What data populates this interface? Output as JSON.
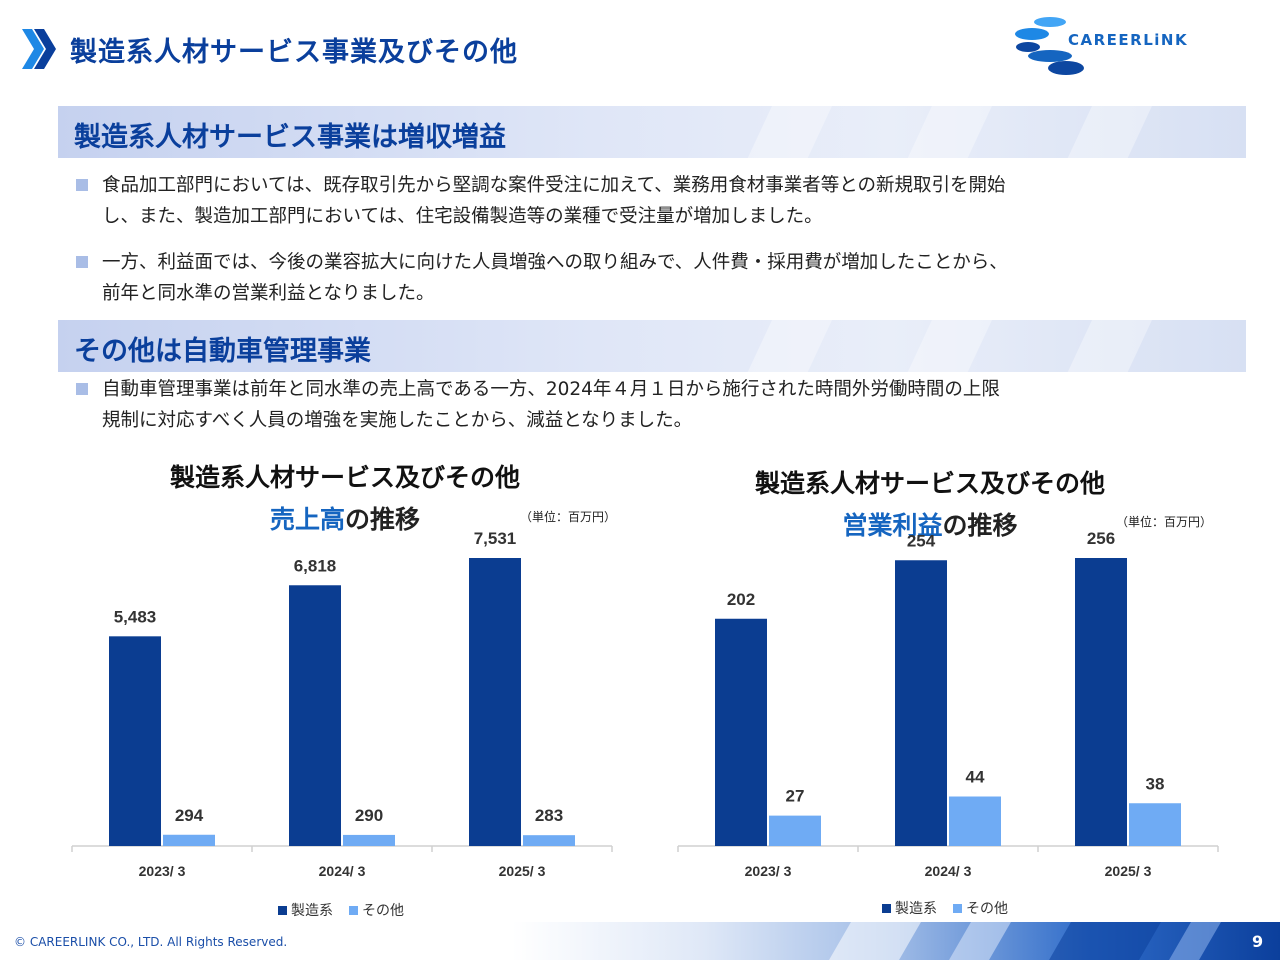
{
  "header": {
    "title": "製造系人材サービス事業及びその他",
    "logo_text": "CAREERLiNK"
  },
  "sections": [
    {
      "title": "製造系人材サービス事業は増収増益",
      "bullets": [
        [
          "食品加工部門においては、既存取引先から堅調な案件受注に加えて、業務用食材事業者等との新規取引を開始",
          "し、また、製造加工部門においては、住宅設備製造等の業種で受注量が増加しました。"
        ],
        [
          "一方、利益面では、今後の業容拡大に向けた人員増強への取り組みで、人件費・採用費が増加したことから、",
          "前年と同水準の営業利益となりました。"
        ]
      ]
    },
    {
      "title": "その他は自動車管理事業",
      "bullets": [
        [
          "自動車管理事業は前年と同水準の売上高である一方、2024年４月１日から施行された時間外労働時間の上限",
          "規制に対応すべく人員の増強を実施したことから、減益となりました。"
        ]
      ]
    }
  ],
  "colors": {
    "primary": "#0a3f9c",
    "series_main": "#0b3d91",
    "series_other": "#6fabf4"
  },
  "chart_data": [
    {
      "type": "bar",
      "title": "製造系人材サービス及びその他",
      "subtitle_highlight": "売上高",
      "subtitle_rest": "の推移",
      "unit": "（単位：百万円）",
      "categories": [
        "2023/ 3",
        "2024/ 3",
        "2025/ 3"
      ],
      "series": [
        {
          "name": "製造系",
          "values": [
            5483,
            6818,
            7531
          ],
          "labels": [
            "5,483",
            "6,818",
            "7,531"
          ]
        },
        {
          "name": "その他",
          "values": [
            294,
            290,
            283
          ],
          "labels": [
            "294",
            "290",
            "283"
          ]
        }
      ],
      "ylim": [
        0,
        7531
      ]
    },
    {
      "type": "bar",
      "title": "製造系人材サービス及びその他",
      "subtitle_highlight": "営業利益",
      "subtitle_rest": "の推移",
      "unit": "（単位：百万円）",
      "categories": [
        "2023/ 3",
        "2024/ 3",
        "2025/ 3"
      ],
      "series": [
        {
          "name": "製造系",
          "values": [
            202,
            254,
            256
          ],
          "labels": [
            "202",
            "254",
            "256"
          ]
        },
        {
          "name": "その他",
          "values": [
            27,
            44,
            38
          ],
          "labels": [
            "27",
            "44",
            "38"
          ]
        }
      ],
      "ylim": [
        0,
        256
      ]
    }
  ],
  "footer": {
    "copyright": "© CAREERLINK CO., LTD. All Rights Reserved.",
    "page_number": "9"
  }
}
